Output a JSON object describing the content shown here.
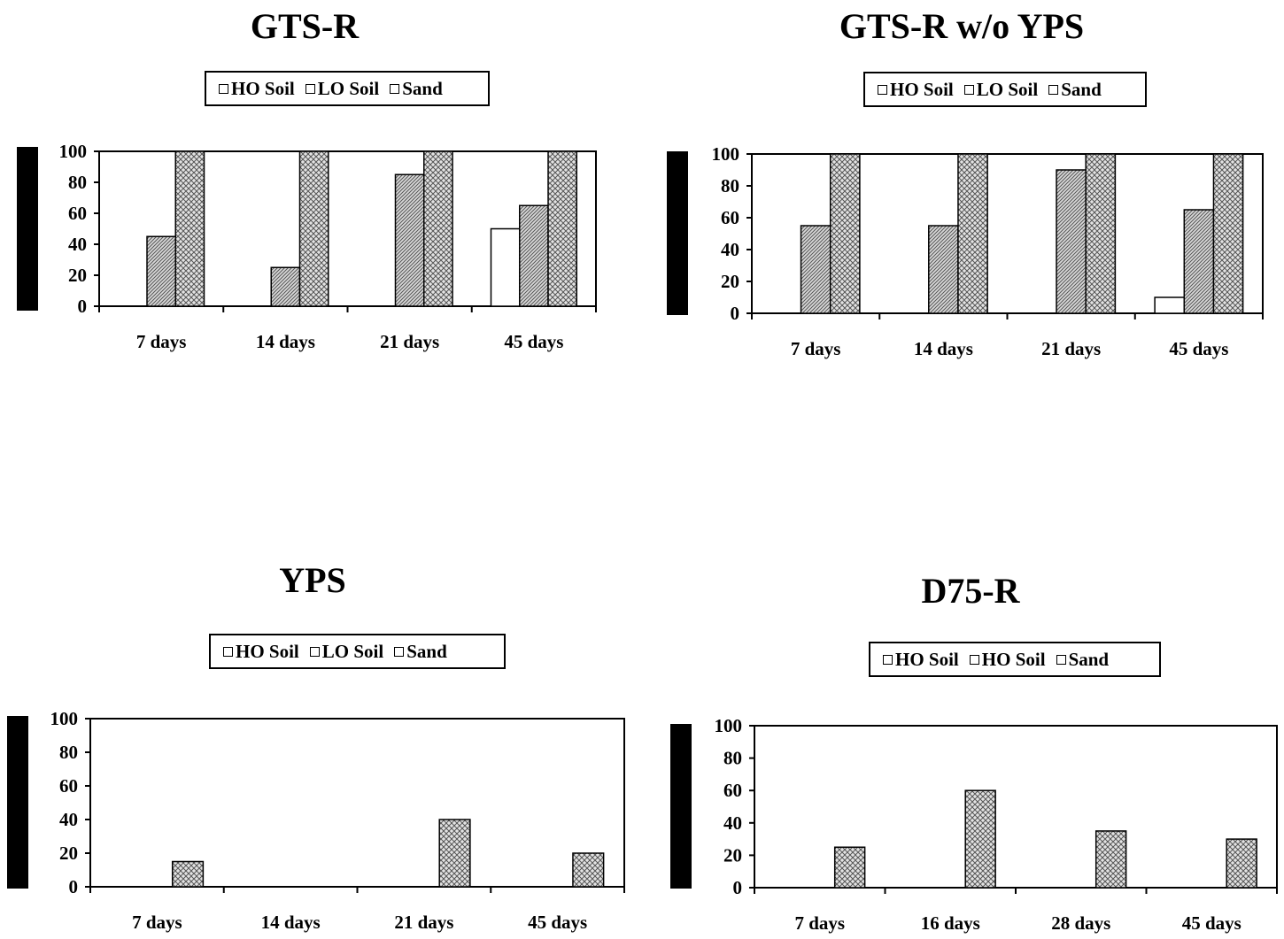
{
  "chart_data": [
    {
      "type": "bar",
      "title": "GTS-R",
      "categories": [
        "7 days",
        "14 days",
        "21 days",
        "45 days"
      ],
      "legend": [
        "HO Soil",
        "LO Soil",
        "Sand"
      ],
      "series": [
        {
          "name": "HO Soil",
          "pattern": "none",
          "values": [
            0,
            0,
            0,
            50
          ]
        },
        {
          "name": "LO Soil",
          "pattern": "hatch",
          "values": [
            45,
            25,
            85,
            65
          ]
        },
        {
          "name": "Sand",
          "pattern": "cross",
          "values": [
            100,
            100,
            100,
            100
          ]
        }
      ],
      "yticks": [
        "0",
        "20",
        "40",
        "60",
        "80",
        "100"
      ],
      "ylim": [
        0,
        100
      ],
      "legend_position": "top-center",
      "grid": false
    },
    {
      "type": "bar",
      "title": "GTS-R w/o YPS",
      "categories": [
        "7 days",
        "14 days",
        "21 days",
        "45 days"
      ],
      "legend": [
        "HO Soil",
        "LO Soil",
        "Sand"
      ],
      "series": [
        {
          "name": "HO Soil",
          "pattern": "none",
          "values": [
            0,
            0,
            0,
            10
          ]
        },
        {
          "name": "LO Soil",
          "pattern": "hatch",
          "values": [
            55,
            55,
            90,
            65
          ]
        },
        {
          "name": "Sand",
          "pattern": "cross",
          "values": [
            100,
            100,
            100,
            100
          ]
        }
      ],
      "yticks": [
        "0",
        "20",
        "40",
        "60",
        "80",
        "100"
      ],
      "ylim": [
        0,
        100
      ],
      "legend_position": "top-center",
      "grid": false
    },
    {
      "type": "bar",
      "title": "YPS",
      "categories": [
        "7 days",
        "14 days",
        "21 days",
        "45 days"
      ],
      "legend": [
        "HO Soil",
        "LO Soil",
        "Sand"
      ],
      "series": [
        {
          "name": "HO Soil",
          "pattern": "none",
          "values": [
            0,
            0,
            0,
            0
          ]
        },
        {
          "name": "LO Soil",
          "pattern": "hatch",
          "values": [
            0,
            0,
            0,
            0
          ]
        },
        {
          "name": "Sand",
          "pattern": "cross",
          "values": [
            15,
            0,
            40,
            20
          ]
        }
      ],
      "yticks": [
        "0",
        "20",
        "40",
        "60",
        "80",
        "100"
      ],
      "ylim": [
        0,
        100
      ],
      "legend_position": "top-center",
      "grid": false
    },
    {
      "type": "bar",
      "title": "D75-R",
      "categories": [
        "7 days",
        "16 days",
        "28 days",
        "45 days"
      ],
      "legend": [
        "HO Soil",
        "HO Soil",
        "Sand"
      ],
      "series": [
        {
          "name": "HO Soil",
          "pattern": "none",
          "values": [
            0,
            0,
            0,
            0
          ]
        },
        {
          "name": "HO Soil",
          "pattern": "hatch",
          "values": [
            0,
            0,
            0,
            0
          ]
        },
        {
          "name": "Sand",
          "pattern": "cross",
          "values": [
            25,
            60,
            35,
            30
          ]
        }
      ],
      "yticks": [
        "0",
        "20",
        "40",
        "60",
        "80",
        "100"
      ],
      "ylim": [
        0,
        100
      ],
      "legend_position": "top-center",
      "grid": false
    }
  ]
}
